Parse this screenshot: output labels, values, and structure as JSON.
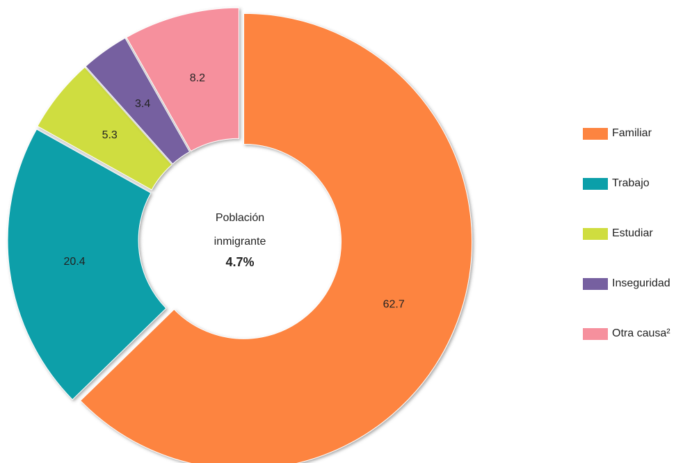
{
  "chart_data": {
    "type": "donut",
    "categories": [
      "Familiar",
      "Trabajo",
      "Estudiar",
      "Inseguridad",
      "Otra causa²"
    ],
    "values": [
      62.7,
      20.4,
      5.3,
      3.4,
      8.2
    ],
    "colors": [
      "#fd8440",
      "#0b9fa9",
      "#cfdd3f",
      "#7660a0",
      "#f6909d"
    ],
    "center_lines": [
      "Población",
      "inmigrante"
    ],
    "center_value": {
      "value": 4.7,
      "label": "4.7%"
    },
    "legend": "right"
  }
}
